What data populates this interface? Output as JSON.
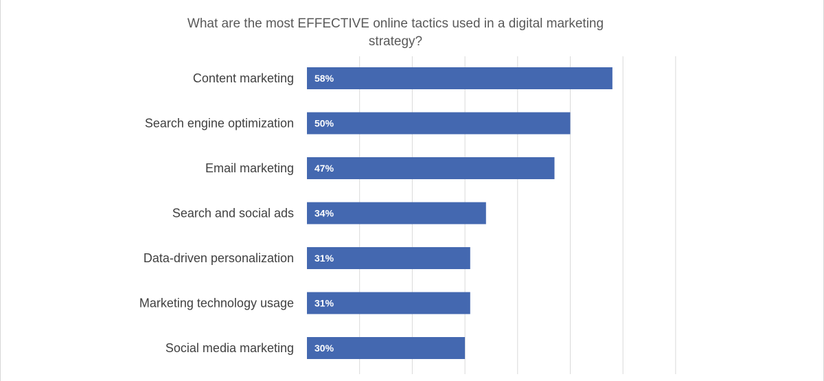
{
  "chart_data": {
    "type": "bar",
    "orientation": "horizontal",
    "title": "What are the most EFFECTIVE online tactics used in a digital marketing strategy?",
    "categories": [
      "Content marketing",
      "Search engine optimization",
      "Email marketing",
      "Search and social ads",
      "Data-driven personalization",
      "Marketing technology usage",
      "Social media marketing"
    ],
    "values": [
      58,
      50,
      47,
      34,
      31,
      31,
      30
    ],
    "value_labels": [
      "58%",
      "50%",
      "47%",
      "34%",
      "31%",
      "31%",
      "30%"
    ],
    "unit": "%",
    "xlim": [
      0,
      70
    ],
    "grid": true,
    "legend": "none",
    "bar_color": "#4468b0",
    "grid_color": "#d9d9d9"
  }
}
